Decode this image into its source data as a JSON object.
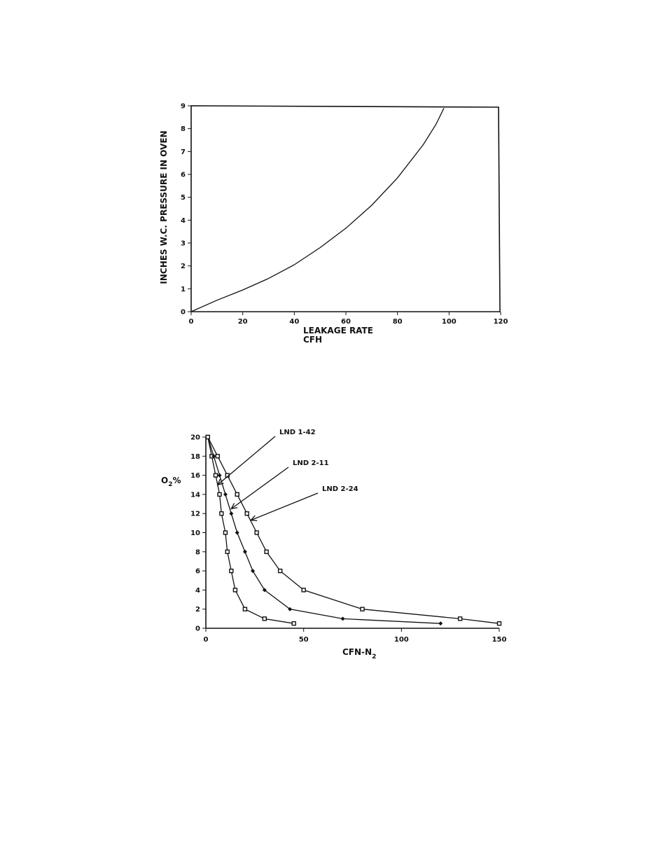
{
  "chart_data": [
    {
      "type": "line",
      "title": "",
      "xlabel": "LEAKAGE RATE",
      "xlabel_unit": "CFH",
      "ylabel": "INCHES W.C. PRESSURE IN OVEN",
      "xlim": [
        0,
        120
      ],
      "ylim": [
        0,
        9
      ],
      "x_ticks": [
        "0",
        "20",
        "40",
        "60",
        "80",
        "100",
        "120"
      ],
      "y_ticks": [
        "0",
        "1",
        "2",
        "3",
        "4",
        "5",
        "6",
        "7",
        "8",
        "9"
      ],
      "grid": false,
      "series": [
        {
          "name": "pressure",
          "x": [
            0,
            10,
            20,
            30,
            40,
            50,
            60,
            70,
            80,
            90,
            95,
            98
          ],
          "y": [
            0,
            0.5,
            0.95,
            1.45,
            2.05,
            2.8,
            3.65,
            4.65,
            5.85,
            7.3,
            8.2,
            8.9
          ]
        }
      ]
    },
    {
      "type": "line",
      "title": "",
      "xlabel": "CFN-N",
      "xlabel_sub": "2",
      "ylabel": "O",
      "ylabel_sub": "2",
      "ylabel_suffix": "%",
      "xlim": [
        0,
        150
      ],
      "ylim": [
        0,
        20
      ],
      "x_ticks": [
        "0",
        "50",
        "100",
        "150"
      ],
      "y_ticks": [
        "0",
        "2",
        "4",
        "6",
        "8",
        "10",
        "12",
        "14",
        "16",
        "18",
        "20"
      ],
      "grid": false,
      "series": [
        {
          "name": "LND 1-42",
          "x": [
            1,
            3,
            5,
            7,
            8,
            10,
            11,
            13,
            15,
            20,
            30,
            45
          ],
          "y": [
            20,
            18,
            16,
            14,
            12,
            10,
            8,
            6,
            4,
            2,
            1,
            0.5
          ]
        },
        {
          "name": "LND 2-11",
          "x": [
            1,
            4,
            7,
            10,
            13,
            16,
            20,
            24,
            30,
            43,
            70,
            120
          ],
          "y": [
            20,
            18,
            16,
            14,
            12,
            10,
            8,
            6,
            4,
            2,
            1,
            0.5
          ]
        },
        {
          "name": "LND 2-24",
          "x": [
            1,
            6,
            11,
            16,
            21,
            26,
            31,
            38,
            50,
            80,
            130,
            150
          ],
          "y": [
            20,
            18,
            16,
            14,
            12,
            10,
            8,
            6,
            4,
            2,
            1,
            0.5
          ]
        }
      ],
      "annotations": [
        {
          "text": "LND 1-42",
          "x": 6,
          "y": 15
        },
        {
          "text": "LND 2-11",
          "x": 13,
          "y": 12.5
        },
        {
          "text": "LND 2-24",
          "x": 23,
          "y": 11.3
        }
      ]
    }
  ]
}
